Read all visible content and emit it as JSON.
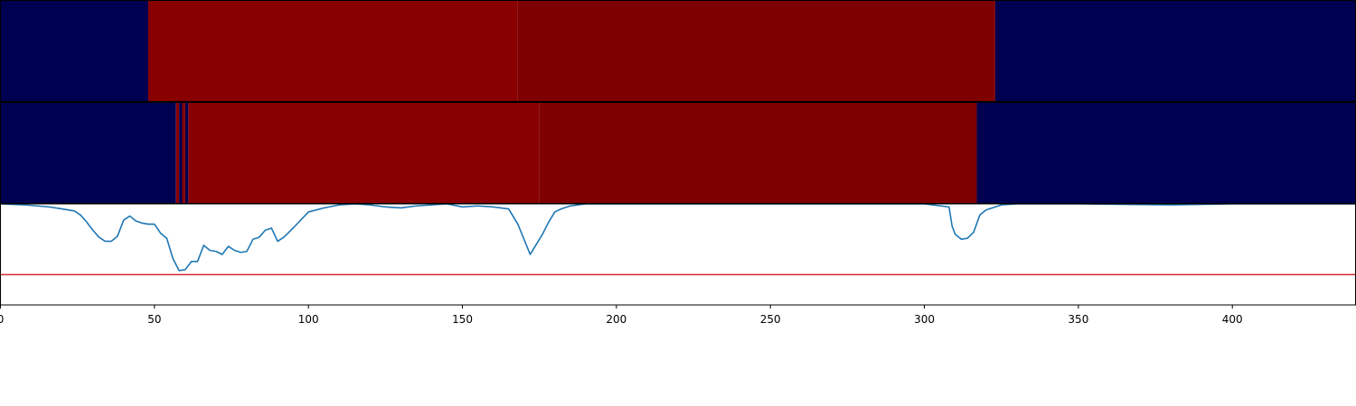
{
  "colors": {
    "background_band": "#000050",
    "segment_a": "#880000",
    "segment_b": "#7e0000",
    "detection_line": "#1f77b4",
    "threshold_line": "#d62728",
    "axis": "#000000"
  },
  "chart_data": [
    {
      "type": "heatmap",
      "panel": "top-strip",
      "xlim": [
        0,
        440
      ],
      "segments": [
        {
          "start": 0,
          "end": 48,
          "color": "background_band"
        },
        {
          "start": 48,
          "end": 168,
          "color": "segment_a"
        },
        {
          "start": 168,
          "end": 323,
          "color": "segment_b"
        },
        {
          "start": 323,
          "end": 440,
          "color": "background_band"
        }
      ]
    },
    {
      "type": "heatmap",
      "panel": "middle-strip",
      "xlim": [
        0,
        440
      ],
      "segments": [
        {
          "start": 0,
          "end": 57,
          "color": "background_band"
        },
        {
          "start": 57,
          "end": 58,
          "color": "segment_a"
        },
        {
          "start": 58,
          "end": 59,
          "color": "background_band"
        },
        {
          "start": 59,
          "end": 60,
          "color": "segment_a"
        },
        {
          "start": 60,
          "end": 61,
          "color": "background_band"
        },
        {
          "start": 61,
          "end": 175,
          "color": "segment_a"
        },
        {
          "start": 175,
          "end": 317,
          "color": "segment_b"
        },
        {
          "start": 317,
          "end": 440,
          "color": "background_band"
        }
      ]
    },
    {
      "type": "line",
      "panel": "score-plot",
      "xlim": [
        0,
        440
      ],
      "ylim": [
        0,
        1
      ],
      "xticks": [
        0,
        50,
        100,
        150,
        200,
        250,
        300,
        350,
        400
      ],
      "threshold": 0.3,
      "series": [
        {
          "color": "detection_line",
          "x": [
            0,
            8,
            16,
            20,
            24,
            26,
            28,
            30,
            32,
            34,
            36,
            38,
            40,
            42,
            44,
            46,
            48,
            50,
            52,
            54,
            56,
            58,
            60,
            62,
            64,
            66,
            68,
            70,
            72,
            74,
            76,
            78,
            80,
            82,
            84,
            86,
            88,
            90,
            92,
            95,
            100,
            105,
            110,
            115,
            120,
            125,
            130,
            135,
            140,
            145,
            150,
            155,
            160,
            165,
            168,
            170,
            172,
            174,
            176,
            178,
            180,
            182,
            185,
            190,
            200,
            250,
            300,
            308,
            309,
            310,
            312,
            314,
            316,
            318,
            320,
            322,
            325,
            330,
            350,
            380,
            400,
            420,
            440
          ],
          "y": [
            1.0,
            0.99,
            0.97,
            0.95,
            0.93,
            0.89,
            0.82,
            0.74,
            0.67,
            0.63,
            0.63,
            0.68,
            0.84,
            0.88,
            0.83,
            0.81,
            0.8,
            0.8,
            0.71,
            0.66,
            0.46,
            0.34,
            0.35,
            0.43,
            0.43,
            0.59,
            0.54,
            0.53,
            0.5,
            0.58,
            0.54,
            0.52,
            0.53,
            0.65,
            0.67,
            0.74,
            0.76,
            0.63,
            0.67,
            0.76,
            0.92,
            0.96,
            0.99,
            1.0,
            0.99,
            0.97,
            0.96,
            0.98,
            0.99,
            1.0,
            0.97,
            0.98,
            0.97,
            0.95,
            0.8,
            0.65,
            0.5,
            0.6,
            0.7,
            0.82,
            0.92,
            0.95,
            0.98,
            1.0,
            1.0,
            1.0,
            1.0,
            0.97,
            0.78,
            0.7,
            0.65,
            0.66,
            0.72,
            0.89,
            0.94,
            0.96,
            0.99,
            1.0,
            1.0,
            0.99,
            1.0,
            1.0,
            1.0
          ]
        }
      ]
    }
  ]
}
